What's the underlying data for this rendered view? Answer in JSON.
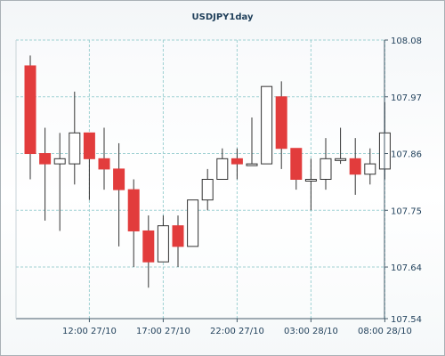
{
  "chart_data": {
    "type": "candlestick",
    "title": "USDJPY1day",
    "xlabel": "",
    "ylabel": "",
    "y_ticks": [
      107.54,
      107.64,
      107.75,
      107.86,
      107.97,
      108.08
    ],
    "y_tick_labels": [
      "107.54",
      "107.64",
      "107.75",
      "107.86",
      "107.97",
      "108.08"
    ],
    "ylim": [
      107.54,
      108.08
    ],
    "x_ticks": [
      {
        "index": 4,
        "label": "12:00 27/10"
      },
      {
        "index": 9,
        "label": "17:00 27/10"
      },
      {
        "index": 14,
        "label": "22:00 27/10"
      },
      {
        "index": 19,
        "label": "03:00 28/10"
      },
      {
        "index": 24,
        "label": "08:00 28/10"
      }
    ],
    "grid": true,
    "colors": {
      "up": "#ffffff",
      "down": "#e23c3c",
      "outline": "#333333",
      "grid": "#9fd1d3",
      "axis": "#455a6a",
      "text": "#1f3f5a"
    },
    "candles": [
      {
        "open": 108.03,
        "high": 108.05,
        "low": 107.81,
        "close": 107.86
      },
      {
        "open": 107.86,
        "high": 107.91,
        "low": 107.73,
        "close": 107.84
      },
      {
        "open": 107.84,
        "high": 107.9,
        "low": 107.71,
        "close": 107.85
      },
      {
        "open": 107.84,
        "high": 107.98,
        "low": 107.8,
        "close": 107.9
      },
      {
        "open": 107.9,
        "high": 107.9,
        "low": 107.77,
        "close": 107.85
      },
      {
        "open": 107.85,
        "high": 107.91,
        "low": 107.79,
        "close": 107.83
      },
      {
        "open": 107.83,
        "high": 107.88,
        "low": 107.68,
        "close": 107.79
      },
      {
        "open": 107.79,
        "high": 107.81,
        "low": 107.64,
        "close": 107.71
      },
      {
        "open": 107.71,
        "high": 107.74,
        "low": 107.6,
        "close": 107.65
      },
      {
        "open": 107.65,
        "high": 107.74,
        "low": 107.65,
        "close": 107.72
      },
      {
        "open": 107.72,
        "high": 107.74,
        "low": 107.64,
        "close": 107.68
      },
      {
        "open": 107.68,
        "high": 107.77,
        "low": 107.68,
        "close": 107.77
      },
      {
        "open": 107.77,
        "high": 107.83,
        "low": 107.75,
        "close": 107.81
      },
      {
        "open": 107.81,
        "high": 107.87,
        "low": 107.81,
        "close": 107.85
      },
      {
        "open": 107.85,
        "high": 107.87,
        "low": 107.81,
        "close": 107.84
      },
      {
        "open": 107.84,
        "high": 107.93,
        "low": 107.84,
        "close": 107.84
      },
      {
        "open": 107.84,
        "high": 107.99,
        "low": 107.84,
        "close": 107.99
      },
      {
        "open": 107.97,
        "high": 108.0,
        "low": 107.83,
        "close": 107.87
      },
      {
        "open": 107.87,
        "high": 107.87,
        "low": 107.79,
        "close": 107.81
      },
      {
        "open": 107.81,
        "high": 107.85,
        "low": 107.75,
        "close": 107.81
      },
      {
        "open": 107.81,
        "high": 107.89,
        "low": 107.79,
        "close": 107.85
      },
      {
        "open": 107.85,
        "high": 107.91,
        "low": 107.84,
        "close": 107.85
      },
      {
        "open": 107.85,
        "high": 107.89,
        "low": 107.78,
        "close": 107.82
      },
      {
        "open": 107.82,
        "high": 107.87,
        "low": 107.8,
        "close": 107.84
      },
      {
        "open": 107.83,
        "high": 107.96,
        "low": 107.81,
        "close": 107.9
      }
    ]
  }
}
